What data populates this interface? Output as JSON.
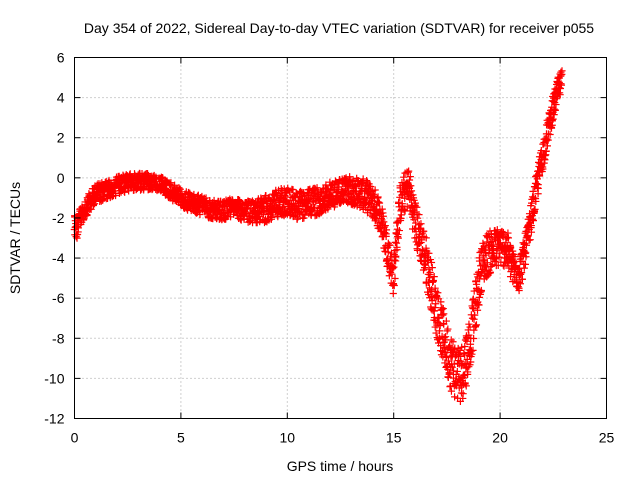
{
  "chart_data": {
    "type": "scatter",
    "title": "Day 354 of 2022, Sidereal Day-to-day VTEC variation (SDTVAR) for receiver p055",
    "xlabel": "GPS time / hours",
    "ylabel": "SDTVAR / TECUs",
    "xlim": [
      0,
      25
    ],
    "ylim": [
      -12,
      6
    ],
    "xticks": [
      0,
      5,
      10,
      15,
      20,
      25
    ],
    "yticks": [
      -12,
      -10,
      -8,
      -6,
      -4,
      -2,
      0,
      2,
      4,
      6
    ],
    "xtick_labels": [
      "0",
      "5",
      "10",
      "15",
      "20",
      "25"
    ],
    "ytick_labels": [
      "-12",
      "-10",
      "-8",
      "-6",
      "-4",
      "-2",
      "0",
      "2",
      "4",
      "6"
    ],
    "grid": true,
    "marker": "plus",
    "color": "#ff0000",
    "series": [
      {
        "name": "p055",
        "trend": [
          [
            0.0,
            -2.3
          ],
          [
            0.1,
            -2.6
          ],
          [
            0.2,
            -2.2
          ],
          [
            0.3,
            -1.9
          ],
          [
            0.5,
            -1.6
          ],
          [
            0.7,
            -1.2
          ],
          [
            1.0,
            -0.8
          ],
          [
            1.3,
            -0.7
          ],
          [
            1.6,
            -0.6
          ],
          [
            2.0,
            -0.4
          ],
          [
            2.3,
            -0.3
          ],
          [
            2.6,
            -0.2
          ],
          [
            3.0,
            -0.2
          ],
          [
            3.4,
            -0.2
          ],
          [
            3.8,
            -0.2
          ],
          [
            4.2,
            -0.4
          ],
          [
            4.6,
            -0.7
          ],
          [
            5.0,
            -1.0
          ],
          [
            5.4,
            -1.2
          ],
          [
            5.8,
            -1.3
          ],
          [
            6.2,
            -1.5
          ],
          [
            6.6,
            -1.6
          ],
          [
            7.0,
            -1.6
          ],
          [
            7.4,
            -1.5
          ],
          [
            7.8,
            -1.6
          ],
          [
            8.2,
            -1.7
          ],
          [
            8.5,
            -1.7
          ],
          [
            8.9,
            -1.6
          ],
          [
            9.3,
            -1.4
          ],
          [
            9.7,
            -1.2
          ],
          [
            10.1,
            -1.2
          ],
          [
            10.5,
            -1.4
          ],
          [
            10.9,
            -1.3
          ],
          [
            11.3,
            -1.2
          ],
          [
            11.7,
            -1.0
          ],
          [
            12.1,
            -0.8
          ],
          [
            12.5,
            -0.7
          ],
          [
            12.9,
            -0.6
          ],
          [
            13.3,
            -0.7
          ],
          [
            13.7,
            -0.9
          ],
          [
            14.0,
            -1.2
          ],
          [
            14.3,
            -1.7
          ],
          [
            14.5,
            -2.5
          ],
          [
            14.7,
            -3.5
          ],
          [
            14.9,
            -4.5
          ],
          [
            15.0,
            -5.0
          ],
          [
            15.1,
            -3.5
          ],
          [
            15.3,
            -1.3
          ],
          [
            15.5,
            -0.8
          ],
          [
            15.7,
            -0.4
          ],
          [
            15.9,
            -1.6
          ],
          [
            16.1,
            -2.6
          ],
          [
            16.3,
            -3.2
          ],
          [
            16.5,
            -4.0
          ],
          [
            16.7,
            -5.0
          ],
          [
            16.9,
            -6.0
          ],
          [
            17.1,
            -7.0
          ],
          [
            17.3,
            -7.8
          ],
          [
            17.5,
            -8.5
          ],
          [
            17.7,
            -9.2
          ],
          [
            17.9,
            -9.6
          ],
          [
            18.1,
            -9.8
          ],
          [
            18.3,
            -9.5
          ],
          [
            18.5,
            -8.5
          ],
          [
            18.7,
            -7.5
          ],
          [
            18.9,
            -6.0
          ],
          [
            19.1,
            -4.5
          ],
          [
            19.4,
            -3.8
          ],
          [
            19.7,
            -3.6
          ],
          [
            20.0,
            -3.4
          ],
          [
            20.3,
            -3.5
          ],
          [
            20.6,
            -4.5
          ],
          [
            20.9,
            -4.8
          ],
          [
            21.1,
            -4.0
          ],
          [
            21.3,
            -3.0
          ],
          [
            21.5,
            -1.8
          ],
          [
            21.7,
            -0.6
          ],
          [
            21.9,
            0.6
          ],
          [
            22.1,
            1.6
          ],
          [
            22.3,
            2.6
          ],
          [
            22.5,
            3.5
          ],
          [
            22.7,
            4.3
          ],
          [
            22.9,
            4.8
          ]
        ],
        "spread": [
          [
            0,
            0.5
          ],
          [
            4,
            0.4
          ],
          [
            6,
            0.5
          ],
          [
            8,
            0.5
          ],
          [
            9,
            0.7
          ],
          [
            13,
            0.7
          ],
          [
            14.5,
            0.9
          ],
          [
            15.5,
            1.0
          ],
          [
            16.5,
            1.2
          ],
          [
            18,
            1.5
          ],
          [
            19,
            1.2
          ],
          [
            20,
            1.0
          ],
          [
            21.5,
            0.8
          ],
          [
            22.9,
            0.6
          ]
        ]
      }
    ]
  }
}
